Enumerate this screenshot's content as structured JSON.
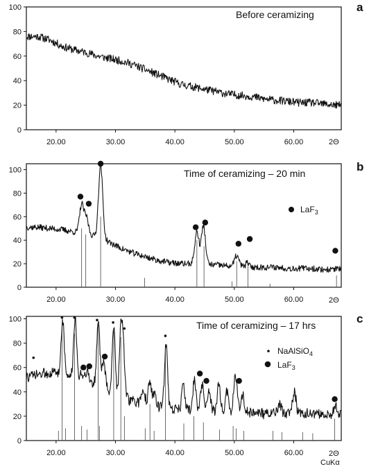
{
  "chart_data": [
    {
      "panel_label": "a",
      "type": "line",
      "title": "Before ceramizing",
      "xlim": [
        15,
        68
      ],
      "ylim": [
        0,
        100
      ],
      "x_ticks": [
        20,
        30,
        40,
        50,
        60
      ],
      "x_tick_labels": [
        "20.00",
        "30.00",
        "40.00",
        "50.00",
        "60.00"
      ],
      "y_ticks": [
        0,
        20,
        40,
        60,
        80,
        100
      ],
      "y_tick_labels": [
        "0",
        "20",
        "40",
        "60",
        "80",
        "100"
      ],
      "x_unit": "2Θ",
      "trace": [
        [
          15,
          76
        ],
        [
          17,
          76
        ],
        [
          19,
          73
        ],
        [
          21,
          68
        ],
        [
          23,
          65
        ],
        [
          25,
          63
        ],
        [
          27,
          60
        ],
        [
          29,
          58
        ],
        [
          31,
          56
        ],
        [
          33,
          53
        ],
        [
          35,
          49
        ],
        [
          37,
          45
        ],
        [
          39,
          41
        ],
        [
          41,
          37
        ],
        [
          43,
          35
        ],
        [
          45,
          33
        ],
        [
          47,
          31
        ],
        [
          49,
          29
        ],
        [
          51,
          28
        ],
        [
          53,
          27
        ],
        [
          55,
          25
        ],
        [
          57,
          24
        ],
        [
          59,
          23
        ],
        [
          61,
          22
        ],
        [
          63,
          22
        ],
        [
          65,
          21
        ],
        [
          67,
          20
        ],
        [
          68,
          20
        ]
      ],
      "peaks": [],
      "reference_lines": [],
      "markers": [],
      "legend": []
    },
    {
      "panel_label": "b",
      "type": "line",
      "title": "Time of ceramizing – 20 min",
      "xlim": [
        15,
        68
      ],
      "ylim": [
        0,
        105
      ],
      "x_ticks": [
        20,
        30,
        40,
        50,
        60
      ],
      "x_tick_labels": [
        "20.00",
        "30.00",
        "40.00",
        "50.00",
        "60.00"
      ],
      "y_ticks": [
        0,
        20,
        40,
        60,
        80,
        100
      ],
      "y_tick_labels": [
        "0",
        "20",
        "40",
        "60",
        "80",
        "100"
      ],
      "x_unit": "2Θ",
      "trace": [
        [
          15,
          51
        ],
        [
          17,
          51
        ],
        [
          19,
          50
        ],
        [
          21,
          49
        ],
        [
          23,
          47
        ],
        [
          25,
          45
        ],
        [
          27,
          43
        ],
        [
          29,
          38
        ],
        [
          31,
          33
        ],
        [
          33,
          29
        ],
        [
          35,
          26
        ],
        [
          37,
          23
        ],
        [
          39,
          21
        ],
        [
          41,
          20
        ],
        [
          43,
          20
        ],
        [
          45,
          19
        ],
        [
          47,
          19
        ],
        [
          49,
          18
        ],
        [
          51,
          18
        ],
        [
          53,
          17
        ],
        [
          55,
          17
        ],
        [
          57,
          17
        ],
        [
          59,
          16
        ],
        [
          61,
          16
        ],
        [
          63,
          16
        ],
        [
          65,
          15
        ],
        [
          67,
          15
        ],
        [
          68,
          15
        ]
      ],
      "peaks": [
        [
          24.3,
          70,
          0.35
        ],
        [
          25.1,
          59,
          0.35
        ],
        [
          27.5,
          104,
          0.35
        ],
        [
          43.7,
          47,
          0.35
        ],
        [
          44.8,
          52,
          0.35
        ],
        [
          50.4,
          27,
          0.35
        ],
        [
          52.2,
          21,
          0.25
        ],
        [
          67.2,
          16,
          0.3
        ]
      ],
      "reference_lines": [
        [
          24.3,
          50
        ],
        [
          25.0,
          45
        ],
        [
          27.5,
          60
        ],
        [
          34.9,
          8
        ],
        [
          43.7,
          40
        ],
        [
          44.9,
          35
        ],
        [
          49.6,
          5
        ],
        [
          50.4,
          22
        ],
        [
          52.3,
          18
        ],
        [
          56.0,
          3
        ],
        [
          67.2,
          10
        ]
      ],
      "markers": [
        [
          24.1,
          77,
          "LaF3"
        ],
        [
          25.5,
          71,
          "LaF3"
        ],
        [
          27.5,
          105,
          "LaF3"
        ],
        [
          43.5,
          51,
          "LaF3"
        ],
        [
          45.1,
          55,
          "LaF3"
        ],
        [
          50.7,
          37,
          "LaF3"
        ],
        [
          52.6,
          41,
          "LaF3"
        ],
        [
          67.0,
          31,
          "LaF3"
        ]
      ],
      "legend": [
        {
          "symbol": "big-dot",
          "label": "LaF",
          "sub": "3"
        }
      ]
    },
    {
      "panel_label": "c",
      "type": "line",
      "title": "Time of ceramizing – 17 hrs",
      "xlim": [
        15,
        68
      ],
      "ylim": [
        0,
        102
      ],
      "x_ticks": [
        20,
        30,
        40,
        50,
        60
      ],
      "x_tick_labels": [
        "20.00",
        "30.00",
        "40.00",
        "50.00",
        "60.00"
      ],
      "y_ticks": [
        0,
        20,
        40,
        60,
        80,
        100
      ],
      "y_tick_labels": [
        "0",
        "20",
        "40",
        "60",
        "80",
        "100"
      ],
      "x_unit": "2Θ",
      "x_subtitle": "CuKα",
      "trace": [
        [
          15,
          52
        ],
        [
          17,
          54
        ],
        [
          19,
          56
        ],
        [
          21,
          55
        ],
        [
          23,
          52
        ],
        [
          25,
          50
        ],
        [
          27,
          45
        ],
        [
          29,
          40
        ],
        [
          31,
          36
        ],
        [
          33,
          32
        ],
        [
          35,
          30
        ],
        [
          37,
          28
        ],
        [
          39,
          27
        ],
        [
          41,
          25
        ],
        [
          43,
          25
        ],
        [
          45,
          24
        ],
        [
          47,
          24
        ],
        [
          49,
          23
        ],
        [
          51,
          23
        ],
        [
          53,
          23
        ],
        [
          55,
          22
        ],
        [
          57,
          22
        ],
        [
          59,
          22
        ],
        [
          61,
          22
        ],
        [
          63,
          22
        ],
        [
          65,
          21
        ],
        [
          67,
          21
        ],
        [
          68,
          21
        ]
      ],
      "peaks": [
        [
          21.1,
          100,
          0.25
        ],
        [
          23.2,
          100,
          0.25
        ],
        [
          24.3,
          55,
          0.3
        ],
        [
          25.2,
          57,
          0.3
        ],
        [
          27.1,
          100,
          0.25
        ],
        [
          28.0,
          64,
          0.3
        ],
        [
          29.7,
          96,
          0.25
        ],
        [
          30.9,
          88,
          0.25
        ],
        [
          31.3,
          72,
          0.25
        ],
        [
          34.7,
          43,
          0.25
        ],
        [
          35.8,
          50,
          0.25
        ],
        [
          36.6,
          38,
          0.25
        ],
        [
          38.5,
          80,
          0.25
        ],
        [
          41.4,
          48,
          0.25
        ],
        [
          43.3,
          50,
          0.25
        ],
        [
          44.6,
          45,
          0.3
        ],
        [
          45.8,
          40,
          0.25
        ],
        [
          47.4,
          48,
          0.25
        ],
        [
          48.8,
          41,
          0.25
        ],
        [
          50.2,
          54,
          0.3
        ],
        [
          51.4,
          38,
          0.25
        ],
        [
          57.6,
          30,
          0.3
        ],
        [
          60.1,
          40,
          0.3
        ],
        [
          67.0,
          29,
          0.3
        ]
      ],
      "reference_lines": [
        [
          20.4,
          8
        ],
        [
          21.0,
          95
        ],
        [
          21.6,
          10
        ],
        [
          23.1,
          88
        ],
        [
          24.3,
          12
        ],
        [
          25.2,
          9
        ],
        [
          27.1,
          95
        ],
        [
          27.3,
          12
        ],
        [
          29.7,
          90
        ],
        [
          30.9,
          85
        ],
        [
          31.5,
          20
        ],
        [
          35.0,
          10
        ],
        [
          35.8,
          30
        ],
        [
          36.5,
          8
        ],
        [
          38.4,
          72
        ],
        [
          41.5,
          14
        ],
        [
          43.2,
          20
        ],
        [
          44.8,
          15
        ],
        [
          47.5,
          9
        ],
        [
          49.8,
          12
        ],
        [
          50.3,
          10
        ],
        [
          51.6,
          8
        ],
        [
          56.5,
          8
        ],
        [
          58.0,
          7
        ],
        [
          61.5,
          7
        ],
        [
          63.2,
          6
        ],
        [
          66.9,
          18
        ]
      ],
      "markers": [
        [
          16.2,
          68,
          "NaAlSiO4"
        ],
        [
          21.0,
          101,
          "NaAlSiO4"
        ],
        [
          23.1,
          101,
          "NaAlSiO4"
        ],
        [
          26.9,
          99,
          "NaAlSiO4"
        ],
        [
          29.6,
          97,
          "NaAlSiO4"
        ],
        [
          31.5,
          92,
          "NaAlSiO4"
        ],
        [
          38.4,
          86,
          "NaAlSiO4"
        ],
        [
          24.6,
          60,
          "LaF3"
        ],
        [
          25.6,
          61,
          "LaF3"
        ],
        [
          28.2,
          69,
          "LaF3"
        ],
        [
          44.2,
          55,
          "LaF3"
        ],
        [
          45.3,
          49,
          "LaF3"
        ],
        [
          50.8,
          49,
          "LaF3"
        ],
        [
          66.9,
          34,
          "LaF3"
        ]
      ],
      "legend": [
        {
          "symbol": "small-dot",
          "label": "NaAlSiO",
          "sub": "4"
        },
        {
          "symbol": "big-dot",
          "label": "LaF",
          "sub": "3"
        }
      ]
    }
  ]
}
